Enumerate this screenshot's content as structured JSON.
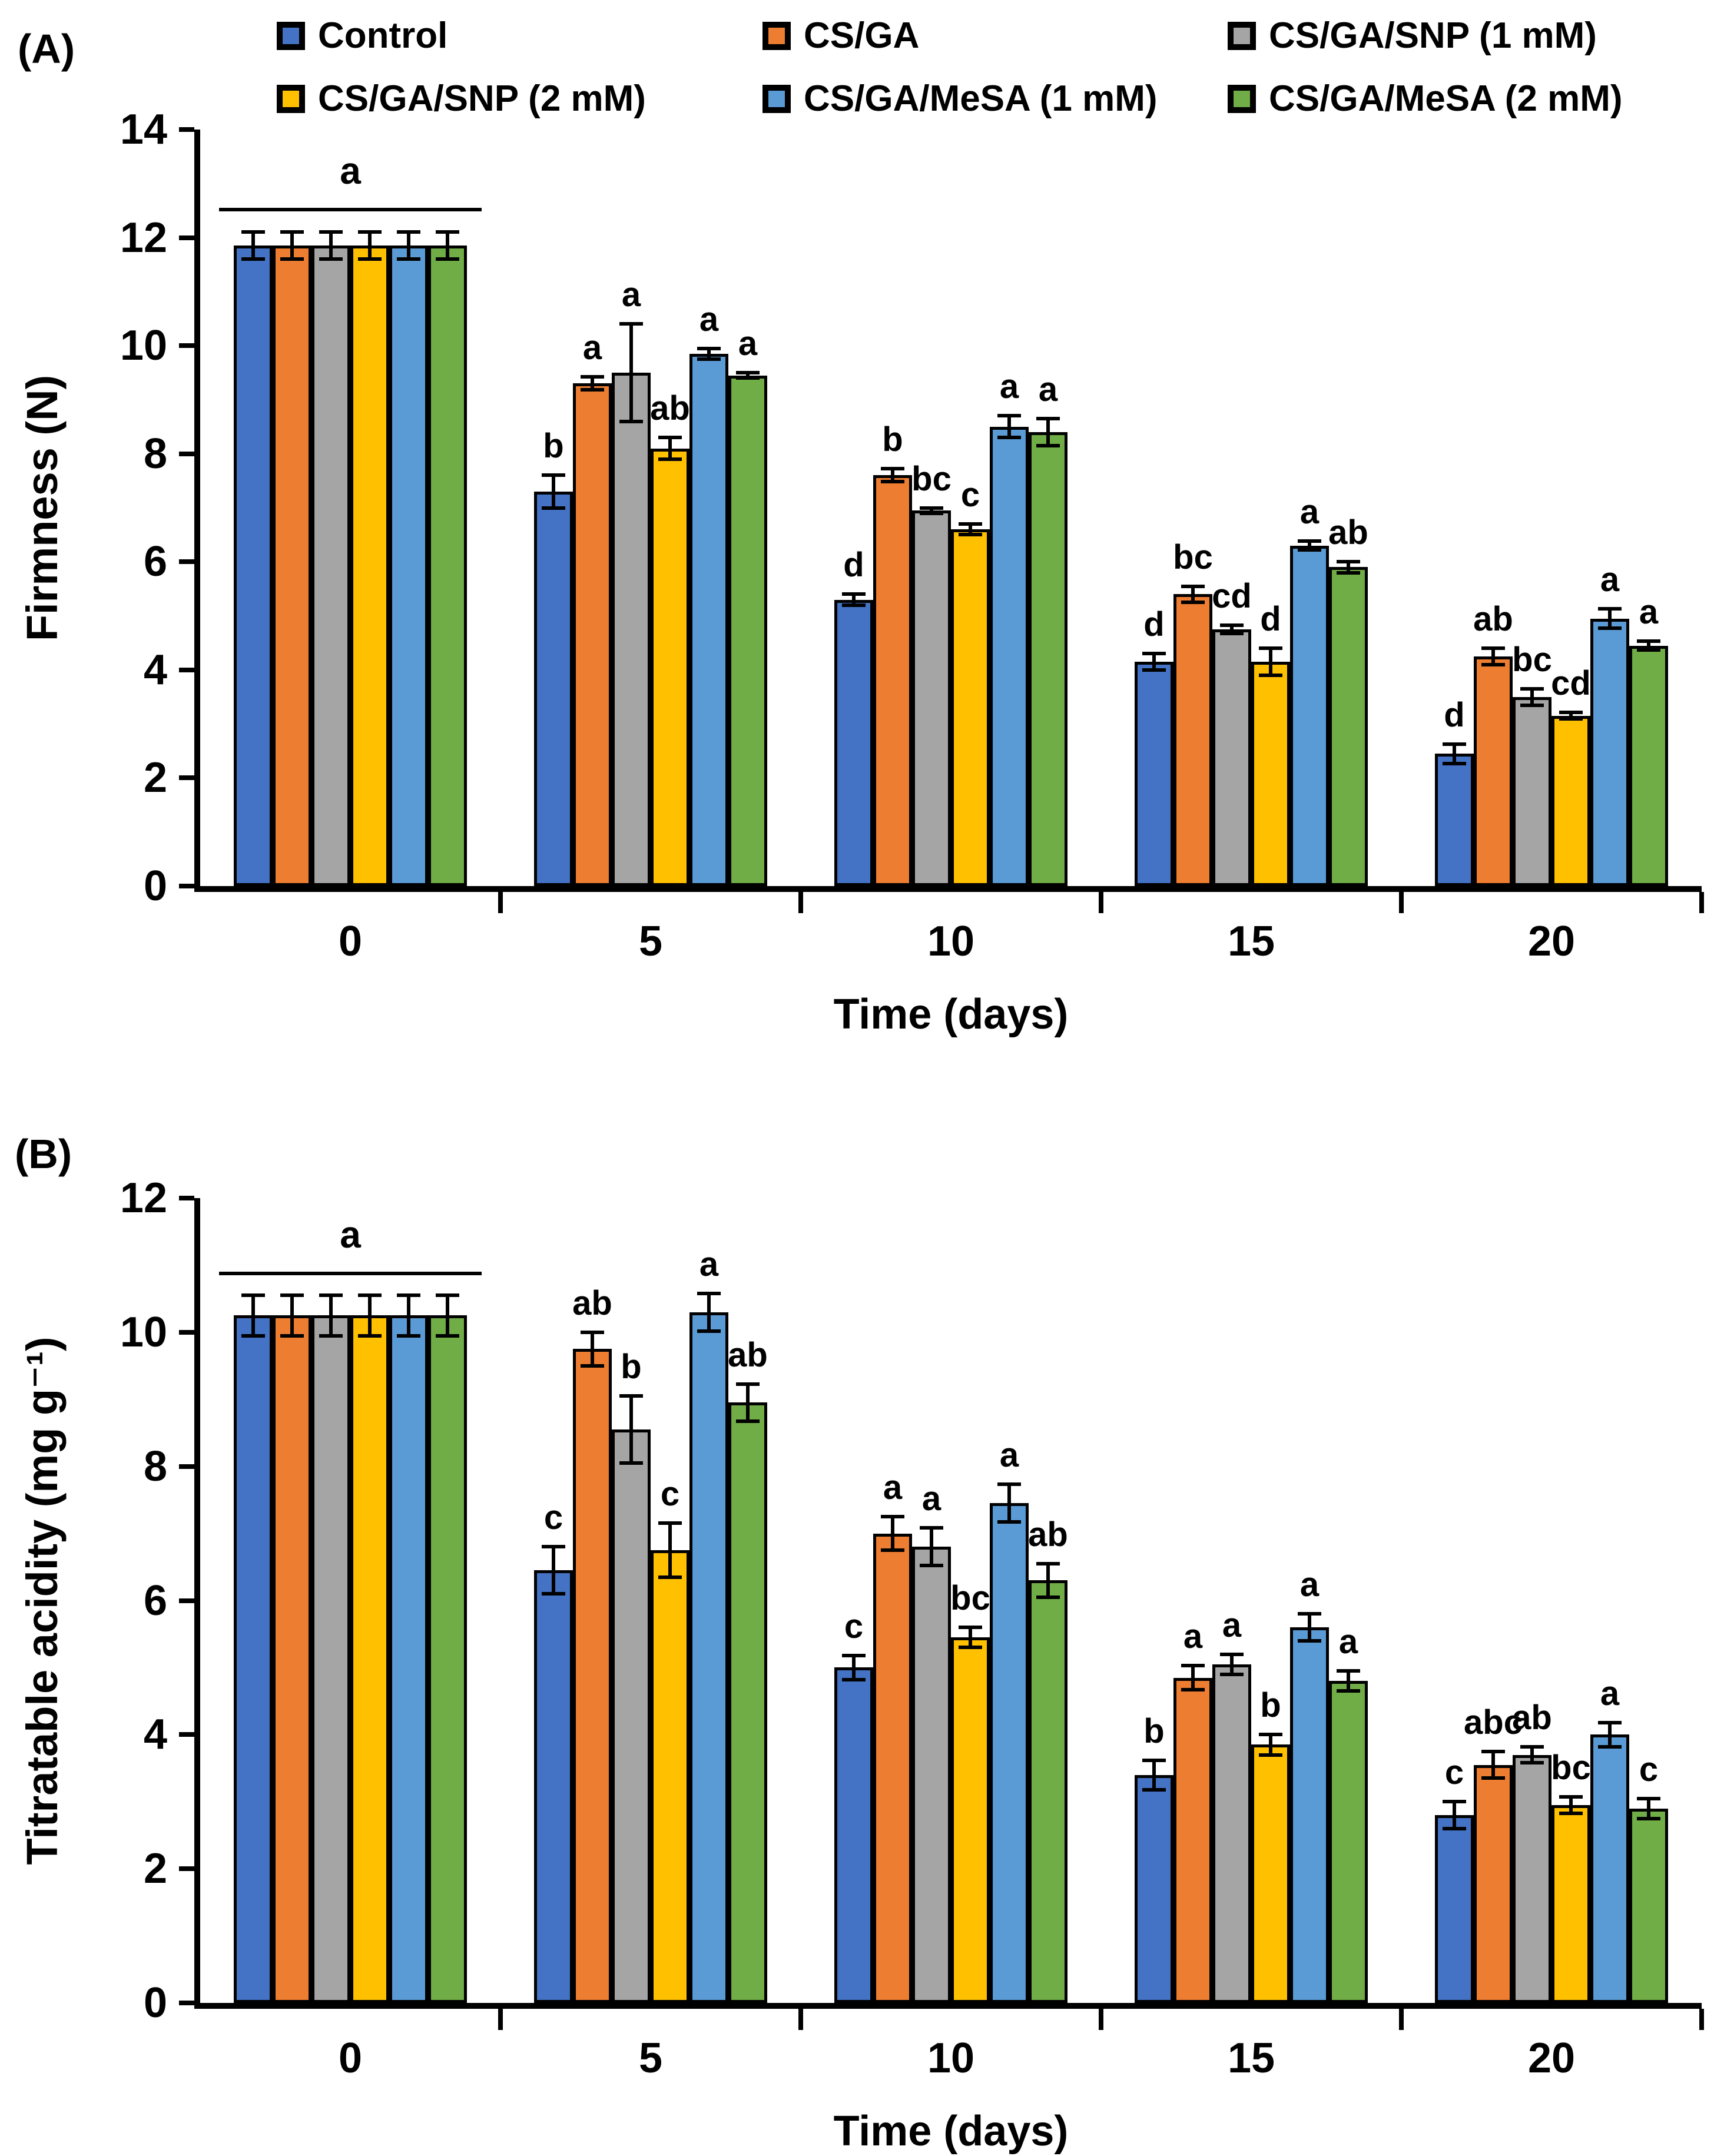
{
  "figure": {
    "panel_a_label": "(A)",
    "panel_b_label": "(B)"
  },
  "legend": {
    "items": [
      {
        "label": "Control",
        "color": "#4472C4"
      },
      {
        "label": "CS/GA",
        "color": "#ED7D31"
      },
      {
        "label": "CS/GA/SNP (1 mM)",
        "color": "#A5A5A5"
      },
      {
        "label": "CS/GA/SNP (2 mM)",
        "color": "#FFC000"
      },
      {
        "label": "CS/GA/MeSA (1 mM)",
        "color": "#5B9BD5"
      },
      {
        "label": "CS/GA/MeSA (2 mM)",
        "color": "#70AD47"
      }
    ]
  },
  "chart_data": [
    {
      "type": "bar",
      "panel_label": "(A)",
      "xlabel": "Time (days)",
      "ylabel": "Firmness (N)",
      "ylim": [
        0,
        14
      ],
      "ytick_step": 2,
      "grid": false,
      "legend_position": "top",
      "categories": [
        "0",
        "5",
        "10",
        "15",
        "20"
      ],
      "series": [
        {
          "name": "Control",
          "color": "#4472C4",
          "values": [
            11.85,
            7.3,
            5.3,
            4.15,
            2.45
          ],
          "errors": [
            0.25,
            0.3,
            0.1,
            0.15,
            0.18
          ],
          "letters": [
            "",
            "b",
            "d",
            "d",
            "d"
          ]
        },
        {
          "name": "CS/GA",
          "color": "#ED7D31",
          "values": [
            11.85,
            9.3,
            7.6,
            5.4,
            4.25
          ],
          "errors": [
            0.25,
            0.12,
            0.12,
            0.15,
            0.15
          ],
          "letters": [
            "",
            "a",
            "b",
            "bc",
            "ab"
          ]
        },
        {
          "name": "CS/GA/SNP (1 mM)",
          "color": "#A5A5A5",
          "values": [
            11.85,
            9.5,
            6.95,
            4.75,
            3.5
          ],
          "errors": [
            0.25,
            0.9,
            0.05,
            0.08,
            0.15
          ],
          "letters": [
            "",
            "a",
            "bc",
            "cd",
            "bc"
          ]
        },
        {
          "name": "CS/GA/SNP (2 mM)",
          "color": "#FFC000",
          "values": [
            11.85,
            8.1,
            6.6,
            4.15,
            3.15
          ],
          "errors": [
            0.25,
            0.2,
            0.1,
            0.25,
            0.06
          ],
          "letters": [
            "",
            "ab",
            "c",
            "d",
            "cd"
          ]
        },
        {
          "name": "CS/GA/MeSA (1 mM)",
          "color": "#5B9BD5",
          "values": [
            11.85,
            9.85,
            8.5,
            6.3,
            4.95
          ],
          "errors": [
            0.25,
            0.1,
            0.2,
            0.08,
            0.18
          ],
          "letters": [
            "",
            "a",
            "a",
            "a",
            "a"
          ]
        },
        {
          "name": "CS/GA/MeSA (2 mM)",
          "color": "#70AD47",
          "values": [
            11.85,
            9.45,
            8.4,
            5.9,
            4.45
          ],
          "errors": [
            0.25,
            0.05,
            0.25,
            0.1,
            0.08
          ],
          "letters": [
            "",
            "a",
            "a",
            "ab",
            "a"
          ]
        }
      ],
      "group_annotations": [
        {
          "category": "0",
          "letter": "a",
          "line_value": 12.55
        }
      ]
    },
    {
      "type": "bar",
      "panel_label": "(B)",
      "xlabel": "Time (days)",
      "ylabel": "Titratable acidity (mg g⁻¹)",
      "ylim": [
        0,
        12
      ],
      "ytick_step": 2,
      "grid": false,
      "legend_position": "top",
      "categories": [
        "0",
        "5",
        "10",
        "15",
        "20"
      ],
      "series": [
        {
          "name": "Control",
          "color": "#4472C4",
          "values": [
            10.25,
            6.45,
            5.0,
            3.4,
            2.8
          ],
          "errors": [
            0.3,
            0.35,
            0.18,
            0.22,
            0.2
          ],
          "letters": [
            "",
            "c",
            "c",
            "b",
            "c"
          ]
        },
        {
          "name": "CS/GA",
          "color": "#ED7D31",
          "values": [
            10.25,
            9.75,
            7.0,
            4.85,
            3.55
          ],
          "errors": [
            0.3,
            0.25,
            0.25,
            0.18,
            0.2
          ],
          "letters": [
            "",
            "ab",
            "a",
            "a",
            "abc"
          ]
        },
        {
          "name": "CS/GA/SNP (1 mM)",
          "color": "#A5A5A5",
          "values": [
            10.25,
            8.55,
            6.8,
            5.05,
            3.7
          ],
          "errors": [
            0.3,
            0.5,
            0.28,
            0.15,
            0.12
          ],
          "letters": [
            "",
            "b",
            "a",
            "a",
            "ab"
          ]
        },
        {
          "name": "CS/GA/SNP (2 mM)",
          "color": "#FFC000",
          "values": [
            10.25,
            6.75,
            5.45,
            3.85,
            2.95
          ],
          "errors": [
            0.3,
            0.4,
            0.15,
            0.15,
            0.12
          ],
          "letters": [
            "",
            "c",
            "bc",
            "b",
            "bc"
          ]
        },
        {
          "name": "CS/GA/MeSA (1 mM)",
          "color": "#5B9BD5",
          "values": [
            10.25,
            10.3,
            7.45,
            5.6,
            4.0
          ],
          "errors": [
            0.3,
            0.28,
            0.28,
            0.2,
            0.18
          ],
          "letters": [
            "",
            "a",
            "a",
            "a",
            "a"
          ]
        },
        {
          "name": "CS/GA/MeSA (2 mM)",
          "color": "#70AD47",
          "values": [
            10.25,
            8.95,
            6.3,
            4.8,
            2.9
          ],
          "errors": [
            0.3,
            0.28,
            0.25,
            0.15,
            0.15
          ],
          "letters": [
            "",
            "ab",
            "ab",
            "a",
            "c"
          ]
        }
      ],
      "group_annotations": [
        {
          "category": "0",
          "letter": "a",
          "line_value": 10.9
        }
      ]
    }
  ]
}
